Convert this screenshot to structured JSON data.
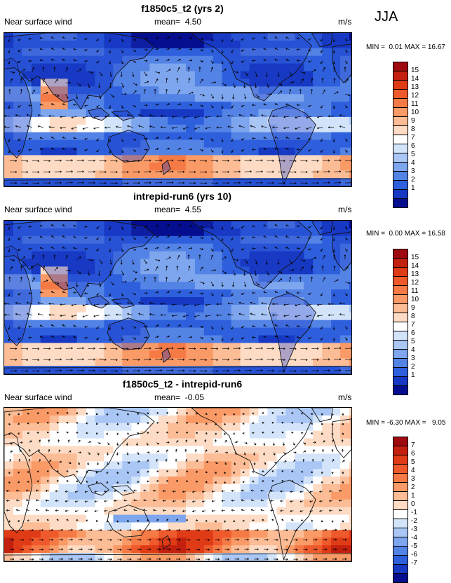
{
  "season": "JJA",
  "panels": [
    {
      "title": "f1850c5_t2 (yrs 2)",
      "variable": "Near surface wind",
      "mean_label": "mean=",
      "mean_value": "4.50",
      "units": "m/s",
      "min_label": "MIN =",
      "min_value": "0.01",
      "max_label": "MAX =",
      "max_value": "16.67",
      "colorbar_labels": [
        "15",
        "14",
        "13",
        "12",
        "11",
        "10",
        "9",
        "8",
        "7",
        "6",
        "5",
        "4",
        "3",
        "2",
        "1"
      ],
      "colorbar_colors": [
        "#9e0a0f",
        "#c3200f",
        "#e03b17",
        "#ef5a2c",
        "#f57a45",
        "#f99a67",
        "#fcbc95",
        "#fddbc4",
        "#ffffff",
        "#d3e4fa",
        "#a9c6f4",
        "#7ea6ee",
        "#5483e6",
        "#2e5fdc",
        "#1638c2",
        "#050e8e"
      ],
      "palette_role": "sequential"
    },
    {
      "title": "intrepid-run6 (yrs 10)",
      "variable": "Near surface wind",
      "mean_label": "mean=",
      "mean_value": "4.55",
      "units": "m/s",
      "min_label": "MIN =",
      "min_value": "0.00",
      "max_label": "MAX =",
      "max_value": "16.58",
      "colorbar_labels": [
        "15",
        "14",
        "13",
        "12",
        "11",
        "10",
        "9",
        "8",
        "7",
        "6",
        "5",
        "4",
        "3",
        "2",
        "1"
      ],
      "colorbar_colors": [
        "#9e0a0f",
        "#c3200f",
        "#e03b17",
        "#ef5a2c",
        "#f57a45",
        "#f99a67",
        "#fcbc95",
        "#fddbc4",
        "#ffffff",
        "#d3e4fa",
        "#a9c6f4",
        "#7ea6ee",
        "#5483e6",
        "#2e5fdc",
        "#1638c2",
        "#050e8e"
      ],
      "palette_role": "sequential"
    },
    {
      "title": "f1850c5_t2 - intrepid-run6",
      "variable": "Near surface wind",
      "mean_label": "mean=",
      "mean_value": "-0.05",
      "units": "m/s",
      "min_label": "MIN =",
      "min_value": "-6.30",
      "max_label": "MAX =",
      "max_value": "9.05",
      "colorbar_labels": [
        "7",
        "6",
        "5",
        "4",
        "3",
        "2",
        "1",
        "0",
        "-1",
        "-2",
        "-3",
        "-4",
        "-5",
        "-6",
        "-7"
      ],
      "colorbar_colors": [
        "#9e0a0f",
        "#c3200f",
        "#e03b17",
        "#ef5a2c",
        "#f57a45",
        "#f99a67",
        "#fcbc95",
        "#fddbc4",
        "#ffffff",
        "#d3e4fa",
        "#a9c6f4",
        "#7ea6ee",
        "#5483e6",
        "#2e5fdc",
        "#1638c2",
        "#050e8e"
      ],
      "palette_role": "difference"
    }
  ]
}
